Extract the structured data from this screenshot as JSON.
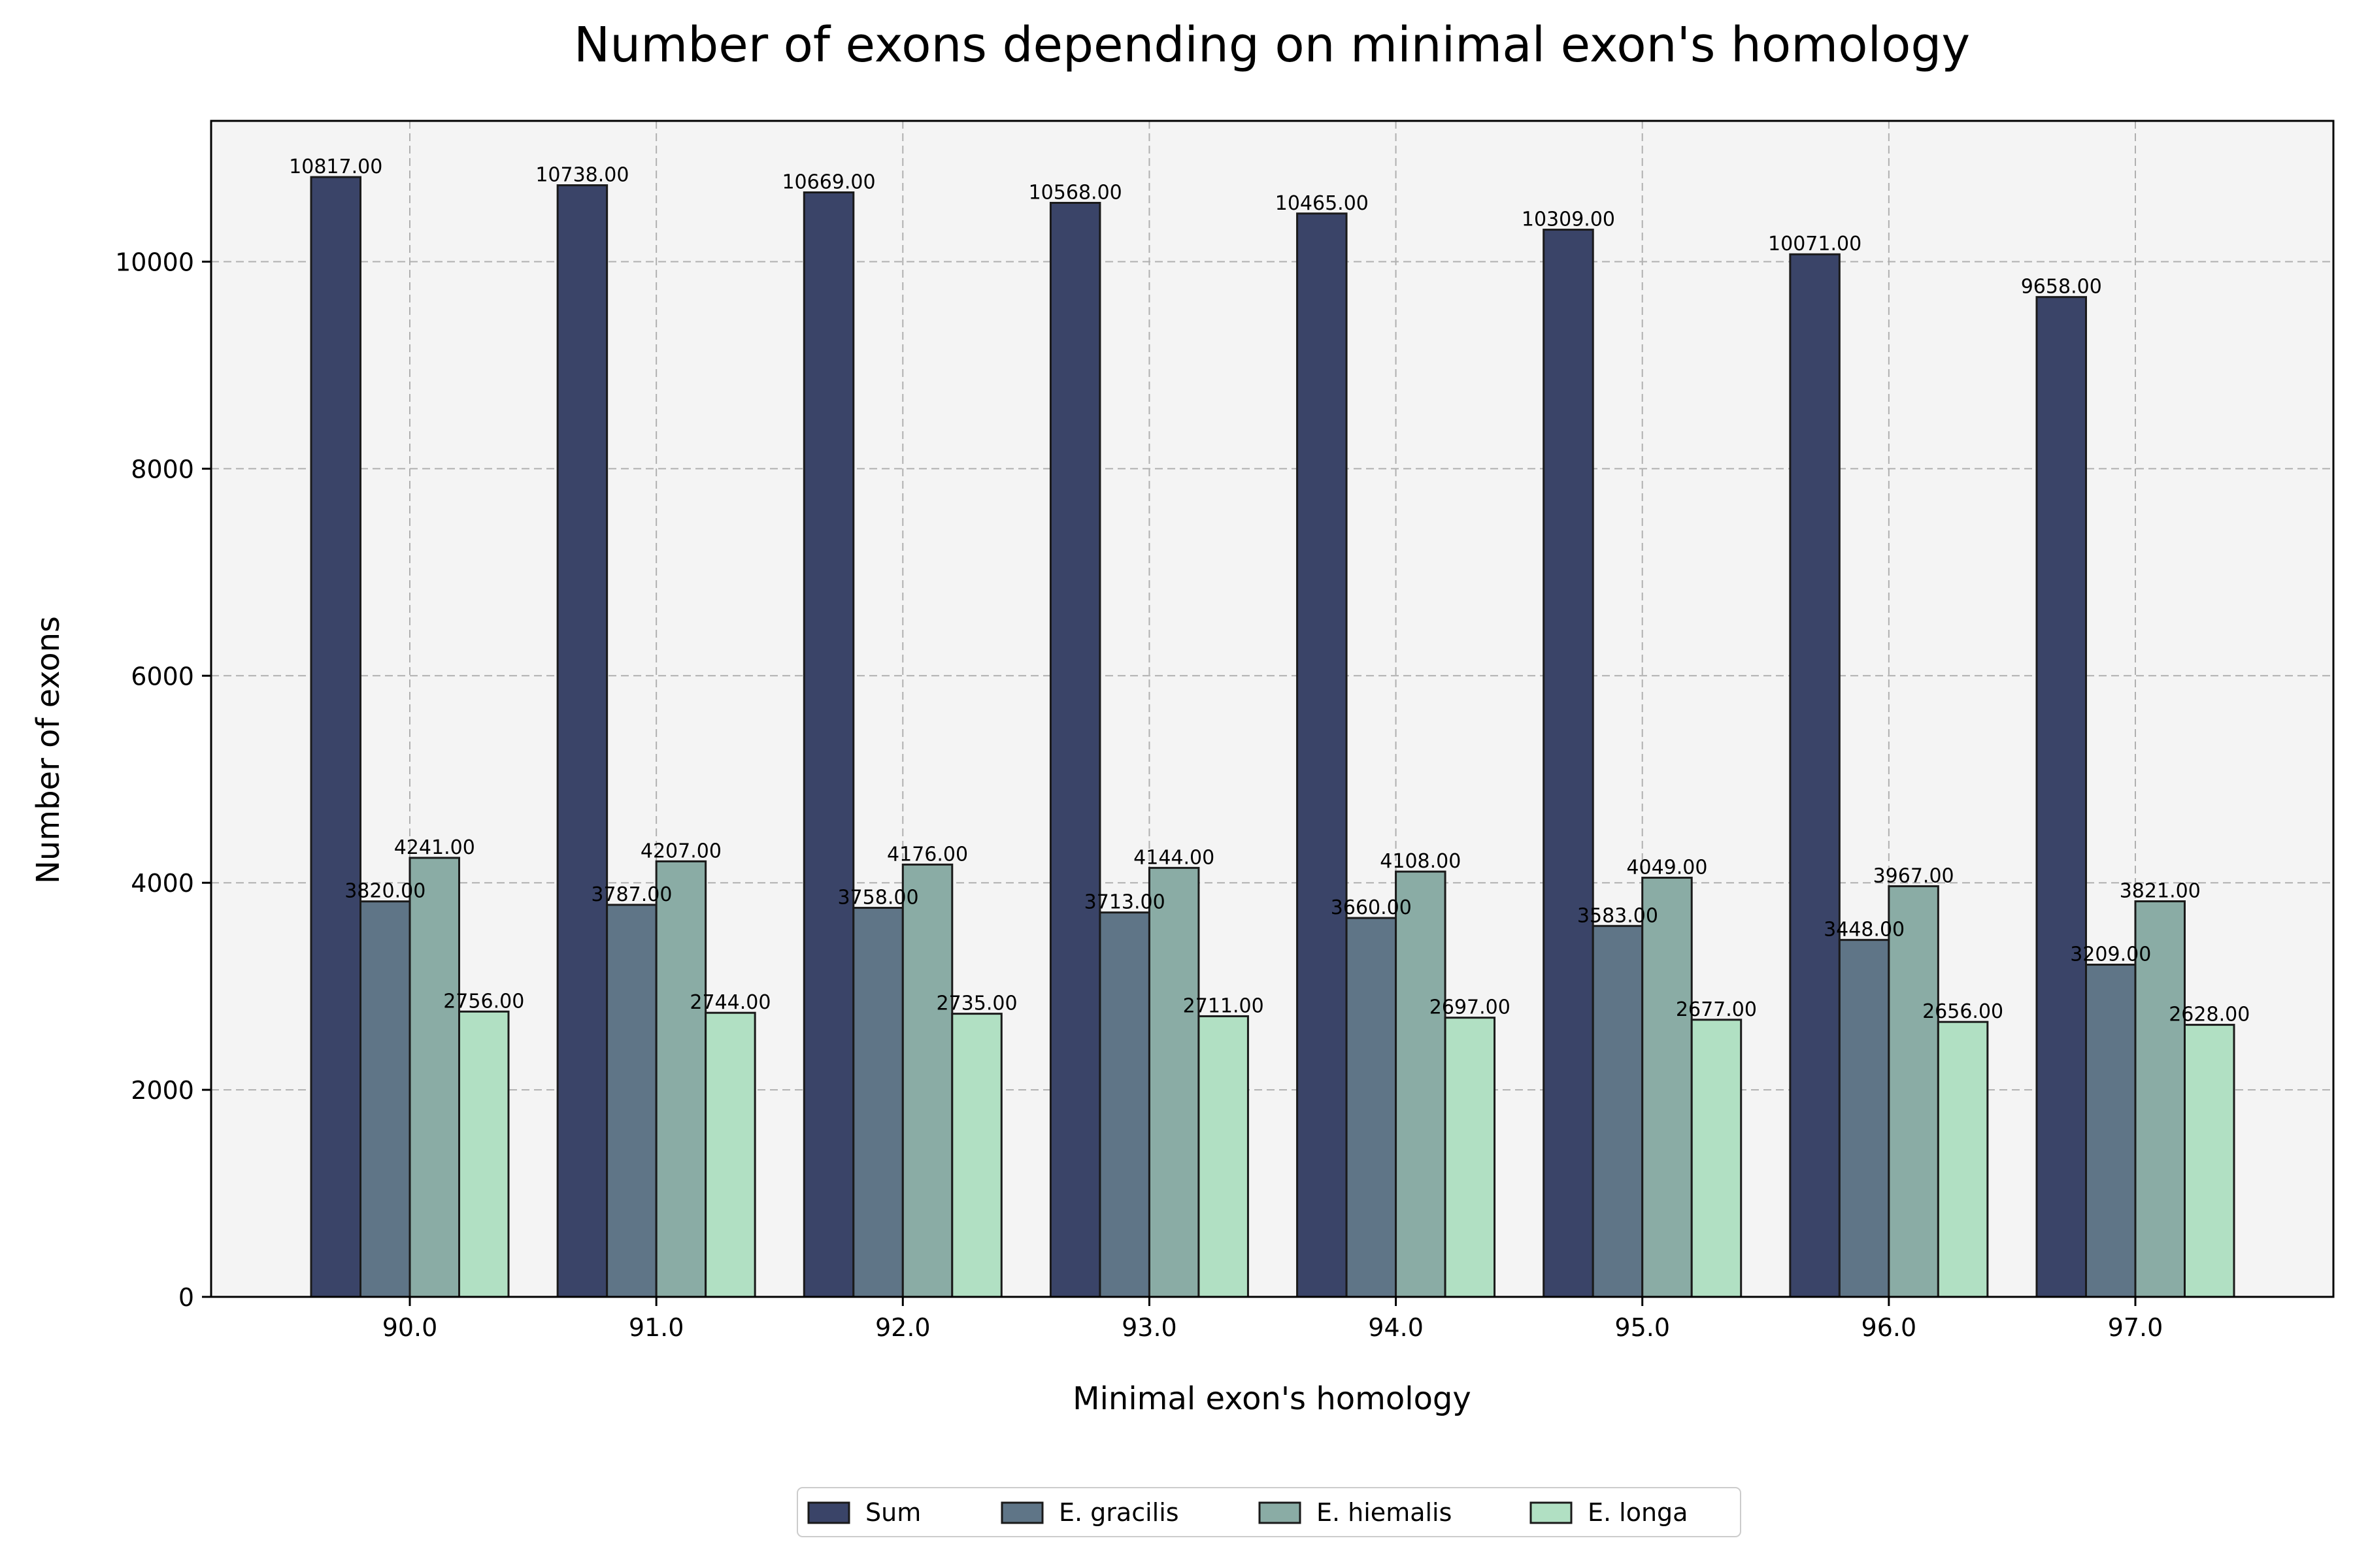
{
  "chart_data": {
    "type": "bar",
    "title": "Number of exons depending on minimal exon's homology",
    "xlabel": "Minimal exon's homology",
    "ylabel": "Number of exons",
    "categories": [
      "90.0",
      "91.0",
      "92.0",
      "93.0",
      "94.0",
      "95.0",
      "96.0",
      "97.0"
    ],
    "series": [
      {
        "name": "Sum",
        "color": "#3a4468",
        "values": [
          10817,
          10738,
          10669,
          10568,
          10465,
          10309,
          10071,
          9658
        ]
      },
      {
        "name": "E. gracilis",
        "color": "#5f7587",
        "values": [
          3820,
          3787,
          3758,
          3713,
          3660,
          3583,
          3448,
          3209
        ]
      },
      {
        "name": "E. hiemalis",
        "color": "#8aaca5",
        "values": [
          4241,
          4207,
          4176,
          4144,
          4108,
          4049,
          3967,
          3821
        ]
      },
      {
        "name": "E. longa",
        "color": "#b1e0c3",
        "values": [
          2756,
          2744,
          2735,
          2711,
          2697,
          2677,
          2656,
          2628
        ]
      }
    ],
    "ylim": [
      0,
      11360
    ],
    "yticks": [
      0,
      2000,
      4000,
      6000,
      8000,
      10000
    ],
    "value_label_format": "2 decimals",
    "grid": true,
    "plot_background": "#f4f4f4",
    "legend_position": "bottom-center"
  }
}
